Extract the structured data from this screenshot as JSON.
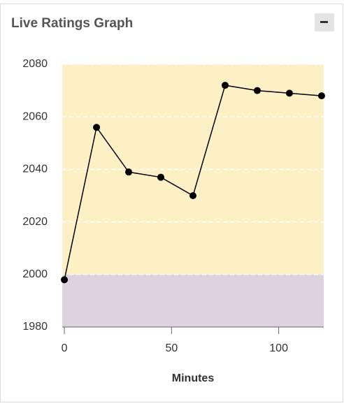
{
  "chart_data": {
    "type": "line",
    "title": "Live Ratings Graph",
    "xlabel": "Minutes",
    "x": [
      0,
      15,
      30,
      45,
      60,
      75,
      90,
      105,
      120
    ],
    "values": [
      1998,
      2056,
      2039,
      2037,
      2030,
      2072,
      2070,
      2069,
      2068
    ],
    "color": "#000000",
    "xlim": [
      -1,
      121
    ],
    "xticks": [
      0,
      50,
      100
    ],
    "ylim": [
      1980,
      2080
    ],
    "yticks": [
      1980,
      2000,
      2020,
      2040,
      2060,
      2080
    ],
    "grid": true,
    "bands": [
      {
        "from": 1980,
        "to": 2000,
        "color": "#dcd3df"
      },
      {
        "from": 2000,
        "to": 2080,
        "color": "#fcf0c4"
      }
    ]
  }
}
